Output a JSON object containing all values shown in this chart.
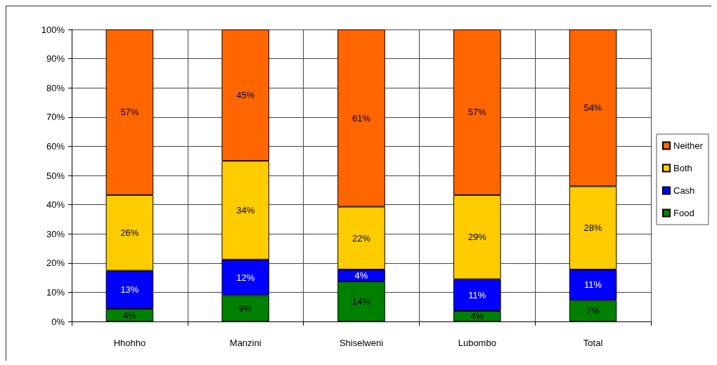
{
  "chart_data": {
    "type": "bar",
    "stacked": true,
    "categories": [
      "Hhohho",
      "Manzini",
      "Shiselweni",
      "Lubombo",
      "Total"
    ],
    "series": [
      {
        "name": "Food",
        "color": "#008000",
        "values": [
          4.3,
          9.0,
          13.7,
          3.6,
          7.3
        ],
        "value_labels": [
          "4%",
          "9%",
          "14%",
          "4%",
          "7%"
        ]
      },
      {
        "name": "Cash",
        "color": "#0000ff",
        "values": [
          13.1,
          12.2,
          4.1,
          10.9,
          10.5
        ],
        "value_labels": [
          "13%",
          "12%",
          "4%",
          "11%",
          "11%"
        ]
      },
      {
        "name": "Both",
        "color": "#ffcc00",
        "values": [
          25.9,
          33.8,
          21.5,
          28.8,
          28.5
        ],
        "value_labels": [
          "26%",
          "34%",
          "22%",
          "29%",
          "28%"
        ]
      },
      {
        "name": "Neither",
        "color": "#ff6600",
        "values": [
          56.7,
          45.0,
          60.7,
          56.7,
          53.7
        ],
        "value_labels": [
          "57%",
          "45%",
          "61%",
          "57%",
          "54%"
        ]
      }
    ],
    "ylim": [
      0,
      100
    ],
    "yticks": [
      {
        "value": 0,
        "label": "0%"
      },
      {
        "value": 10,
        "label": "10%"
      },
      {
        "value": 20,
        "label": "20%"
      },
      {
        "value": 30,
        "label": "30%"
      },
      {
        "value": 40,
        "label": "40%"
      },
      {
        "value": 50,
        "label": "50%"
      },
      {
        "value": 60,
        "label": "60%"
      },
      {
        "value": 70,
        "label": "70%"
      },
      {
        "value": 80,
        "label": "80%"
      },
      {
        "value": 90,
        "label": "90%"
      },
      {
        "value": 100,
        "label": "100%"
      }
    ],
    "grid": true,
    "legend": "right"
  }
}
